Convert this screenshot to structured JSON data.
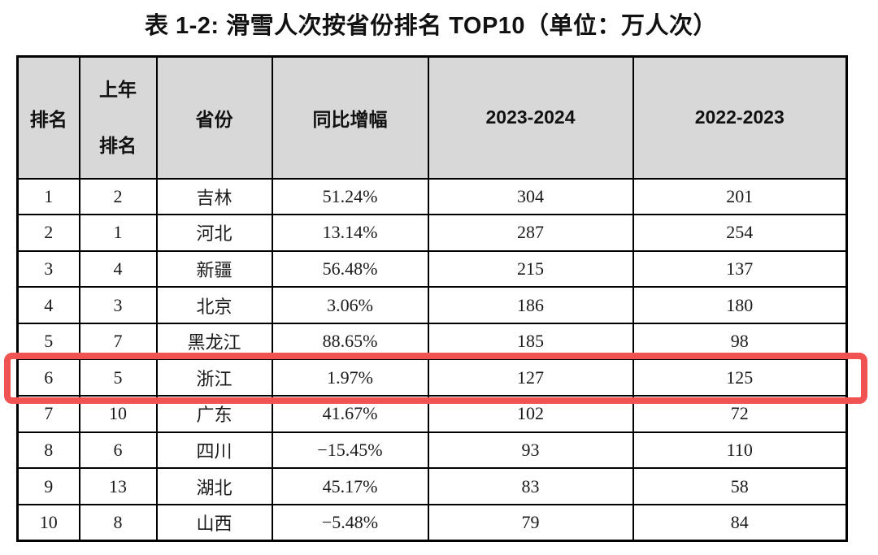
{
  "title": "表 1-2: 滑雪人次按省份排名 TOP10（单位：万人次）",
  "colors": {
    "highlight_border": "#f05252",
    "header_background": "#d8d8d8",
    "table_border": "#000000"
  },
  "table": {
    "headers": {
      "rank": "排名",
      "prev_rank": "上年\n排名",
      "province": "省份",
      "yoy_growth": "同比增幅",
      "season_2023_2024": "2023-2024",
      "season_2022_2023": "2022-2023"
    },
    "rows": [
      {
        "rank": "1",
        "prev_rank": "2",
        "province": "吉林",
        "yoy": "51.24%",
        "s2023_2024": "304",
        "s2022_2023": "201",
        "highlighted": false
      },
      {
        "rank": "2",
        "prev_rank": "1",
        "province": "河北",
        "yoy": "13.14%",
        "s2023_2024": "287",
        "s2022_2023": "254",
        "highlighted": false
      },
      {
        "rank": "3",
        "prev_rank": "4",
        "province": "新疆",
        "yoy": "56.48%",
        "s2023_2024": "215",
        "s2022_2023": "137",
        "highlighted": false
      },
      {
        "rank": "4",
        "prev_rank": "3",
        "province": "北京",
        "yoy": "3.06%",
        "s2023_2024": "186",
        "s2022_2023": "180",
        "highlighted": false
      },
      {
        "rank": "5",
        "prev_rank": "7",
        "province": "黑龙江",
        "yoy": "88.65%",
        "s2023_2024": "185",
        "s2022_2023": "98",
        "highlighted": false
      },
      {
        "rank": "6",
        "prev_rank": "5",
        "province": "浙江",
        "yoy": "1.97%",
        "s2023_2024": "127",
        "s2022_2023": "125",
        "highlighted": true
      },
      {
        "rank": "7",
        "prev_rank": "10",
        "province": "广东",
        "yoy": "41.67%",
        "s2023_2024": "102",
        "s2022_2023": "72",
        "highlighted": false
      },
      {
        "rank": "8",
        "prev_rank": "6",
        "province": "四川",
        "yoy": "−15.45%",
        "s2023_2024": "93",
        "s2022_2023": "110",
        "highlighted": false
      },
      {
        "rank": "9",
        "prev_rank": "13",
        "province": "湖北",
        "yoy": "45.17%",
        "s2023_2024": "83",
        "s2022_2023": "58",
        "highlighted": false
      },
      {
        "rank": "10",
        "prev_rank": "8",
        "province": "山西",
        "yoy": "−5.48%",
        "s2023_2024": "79",
        "s2022_2023": "84",
        "highlighted": false
      }
    ]
  }
}
